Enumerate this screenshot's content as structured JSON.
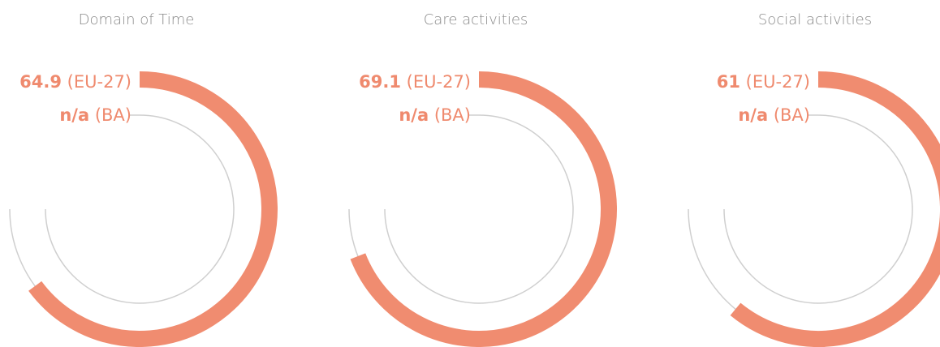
{
  "chart_data": [
    {
      "type": "radial",
      "title": "Domain of Time",
      "ylim": [
        0,
        100
      ],
      "series": [
        {
          "name": "(EU-27)",
          "color": "#f08c70",
          "values": [
            64.9
          ]
        },
        {
          "name": "(BA)",
          "color": "#c8c8c8",
          "values": [
            null
          ],
          "value_labels": [
            "n/a"
          ]
        }
      ]
    },
    {
      "type": "radial",
      "title": "Care activities",
      "ylim": [
        0,
        100
      ],
      "series": [
        {
          "name": "(EU-27)",
          "color": "#f08c70",
          "values": [
            69.1
          ]
        },
        {
          "name": "(BA)",
          "color": "#c8c8c8",
          "values": [
            null
          ],
          "value_labels": [
            "n/a"
          ]
        }
      ]
    },
    {
      "type": "radial",
      "title": "Social activities",
      "ylim": [
        0,
        100
      ],
      "series": [
        {
          "name": "(EU-27)",
          "color": "#f08c70",
          "values": [
            61.0
          ]
        },
        {
          "name": "(BA)",
          "color": "#c8c8c8",
          "values": [
            null
          ],
          "value_labels": [
            "n/a"
          ]
        }
      ]
    }
  ]
}
